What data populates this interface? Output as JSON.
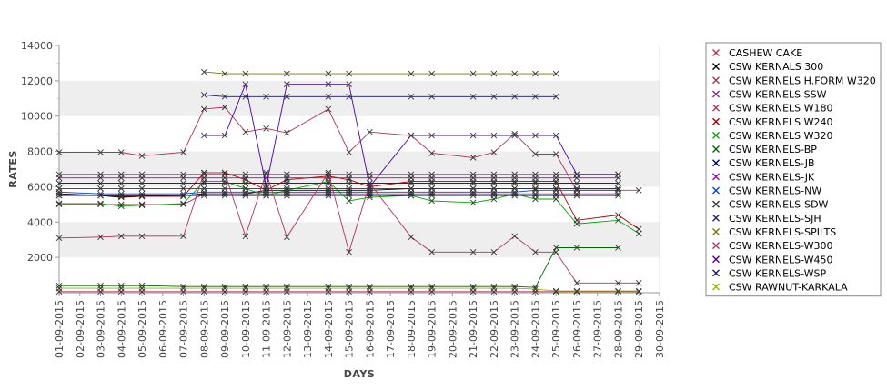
{
  "chart_data": {
    "type": "line",
    "xlabel": "DAYS",
    "ylabel": "RATES",
    "ylim": [
      0,
      14000
    ],
    "yticks": [
      2000,
      4000,
      6000,
      8000,
      10000,
      12000,
      14000
    ],
    "grid": "alternating horizontal bands",
    "legend_position": "right",
    "categories": [
      "01-09-2015",
      "02-09-2015",
      "03-09-2015",
      "04-09-2015",
      "05-09-2015",
      "06-09-2015",
      "07-09-2015",
      "08-09-2015",
      "09-09-2015",
      "10-09-2015",
      "11-09-2015",
      "12-09-2015",
      "13-09-2015",
      "14-09-2015",
      "15-09-2015",
      "16-09-2015",
      "17-09-2015",
      "18-09-2015",
      "19-09-2015",
      "20-09-2015",
      "21-09-2015",
      "22-09-2015",
      "23-09-2015",
      "24-09-2015",
      "25-09-2015",
      "26-09-2015",
      "27-09-2015",
      "28-09-2015",
      "29-09-2015",
      "30-09-2015"
    ],
    "series": [
      {
        "name": "CASHEW CAKE",
        "color": "#b03060",
        "values": [
          60,
          null,
          60,
          60,
          60,
          null,
          60,
          60,
          60,
          60,
          60,
          60,
          null,
          60,
          60,
          60,
          null,
          60,
          60,
          null,
          60,
          60,
          60,
          60,
          60,
          60,
          null,
          60,
          60,
          null
        ]
      },
      {
        "name": "CSW KERNALS 300",
        "color": "#000000",
        "values": [
          5600,
          null,
          5500,
          5400,
          5450,
          null,
          5500,
          5600,
          5600,
          5600,
          5800,
          5800,
          null,
          5800,
          5800,
          5800,
          null,
          5900,
          5900,
          null,
          5900,
          5900,
          5900,
          5900,
          5900,
          5900,
          null,
          5900,
          null,
          null
        ]
      },
      {
        "name": "CSW KERNELS H.FORM W320",
        "color": "#b03060",
        "values": [
          5000,
          null,
          5000,
          5000,
          5000,
          null,
          5000,
          5600,
          5600,
          5600,
          5600,
          5600,
          null,
          5600,
          5600,
          5600,
          null,
          5600,
          5600,
          null,
          5600,
          5600,
          5600,
          5600,
          5600,
          5600,
          null,
          5600,
          null,
          null
        ]
      },
      {
        "name": "CSW KERNELS SSW",
        "color": "#7a2a7a",
        "values": [
          6700,
          null,
          6700,
          6700,
          6700,
          null,
          6700,
          6700,
          6700,
          6700,
          6700,
          6700,
          null,
          6700,
          6700,
          6700,
          null,
          6700,
          6700,
          null,
          6700,
          6700,
          6700,
          6700,
          6700,
          6700,
          null,
          6700,
          null,
          null
        ]
      },
      {
        "name": "CSW KERNELS W180",
        "color": "#b03060",
        "values": [
          7950,
          null,
          7950,
          7950,
          7750,
          null,
          7950,
          10400,
          10500,
          9100,
          9300,
          9050,
          null,
          10400,
          7950,
          9100,
          null,
          8900,
          7900,
          null,
          7650,
          7950,
          9000,
          7850,
          7850,
          5800,
          null,
          5800,
          5800,
          null
        ]
      },
      {
        "name": "CSW KERNELS W240",
        "color": "#b00000",
        "values": [
          5500,
          null,
          5500,
          5450,
          5450,
          null,
          5450,
          6800,
          6800,
          6400,
          5800,
          6400,
          null,
          6600,
          6400,
          6000,
          null,
          6300,
          6300,
          null,
          6300,
          6300,
          6300,
          6300,
          6300,
          4100,
          null,
          4400,
          3600,
          null
        ]
      },
      {
        "name": "CSW KERNELS W320",
        "color": "#00aa00",
        "values": [
          5050,
          null,
          5050,
          4900,
          4950,
          null,
          5050,
          6300,
          6300,
          5900,
          5500,
          5800,
          null,
          6300,
          5200,
          5400,
          null,
          5500,
          5200,
          null,
          5100,
          5300,
          5600,
          5300,
          5300,
          3900,
          null,
          4100,
          3350,
          null
        ]
      },
      {
        "name": "CSW KERNELS-BP",
        "color": "#006600",
        "values": [
          400,
          null,
          400,
          400,
          400,
          null,
          350,
          350,
          350,
          350,
          350,
          350,
          null,
          350,
          350,
          350,
          null,
          350,
          350,
          null,
          350,
          350,
          350,
          300,
          2550,
          2550,
          null,
          2550,
          null,
          null
        ]
      },
      {
        "name": "CSW KERNELS-JB",
        "color": "#000080",
        "values": [
          5500,
          null,
          5500,
          5500,
          5500,
          null,
          5500,
          5500,
          5500,
          5500,
          5500,
          5500,
          null,
          5500,
          5500,
          5500,
          null,
          5500,
          5500,
          null,
          5500,
          5500,
          5500,
          5500,
          5500,
          5500,
          null,
          5500,
          null,
          null
        ]
      },
      {
        "name": "CSW KERNELS-JK",
        "color": "#aa00aa",
        "values": [
          6500,
          null,
          6500,
          6500,
          6500,
          null,
          6500,
          6500,
          6500,
          6500,
          6500,
          6500,
          null,
          6500,
          6500,
          6500,
          null,
          6500,
          6500,
          null,
          6500,
          6500,
          6500,
          6500,
          6500,
          6500,
          null,
          6500,
          null,
          null
        ]
      },
      {
        "name": "CSW KERNELS-NW",
        "color": "#0044cc",
        "values": [
          5700,
          null,
          5600,
          5600,
          5600,
          null,
          5600,
          5700,
          5700,
          5700,
          5700,
          5700,
          null,
          5700,
          5700,
          5700,
          null,
          5700,
          5700,
          null,
          5700,
          5700,
          5700,
          5800,
          5800,
          5800,
          null,
          5800,
          null,
          null
        ]
      },
      {
        "name": "CSW KERNELS-SDW",
        "color": "#333333",
        "values": [
          5900,
          null,
          5900,
          5900,
          5900,
          null,
          5900,
          5900,
          5900,
          5900,
          5900,
          5900,
          null,
          5900,
          5900,
          5900,
          null,
          5900,
          5900,
          null,
          5900,
          5900,
          5900,
          5900,
          5900,
          5900,
          null,
          5900,
          null,
          null
        ]
      },
      {
        "name": "CSW KERNELS-SJH",
        "color": "#222266",
        "values": [
          6200,
          null,
          6200,
          6200,
          6200,
          null,
          6200,
          6200,
          6200,
          6200,
          6200,
          6200,
          null,
          6200,
          6200,
          6200,
          null,
          6200,
          6200,
          null,
          6200,
          6200,
          6200,
          6200,
          6200,
          6200,
          null,
          6200,
          null,
          null
        ]
      },
      {
        "name": "CSW KERNELS-SPILTS",
        "color": "#7a7a00",
        "values": [
          null,
          null,
          null,
          null,
          null,
          null,
          null,
          12500,
          12400,
          12400,
          null,
          12400,
          null,
          12400,
          12400,
          null,
          null,
          12400,
          12400,
          null,
          12400,
          12400,
          12400,
          12400,
          12400,
          null,
          null,
          null,
          null,
          null
        ]
      },
      {
        "name": "CSW KERNELS-W300",
        "color": "#b03060",
        "values": [
          3100,
          null,
          3150,
          3200,
          3200,
          null,
          3200,
          6800,
          6800,
          3200,
          6800,
          3150,
          null,
          6800,
          2300,
          6200,
          null,
          3150,
          2300,
          null,
          2300,
          2300,
          3200,
          2300,
          2300,
          550,
          null,
          550,
          550,
          null
        ]
      },
      {
        "name": "CSW KERNELS-W450",
        "color": "#4b00aa",
        "values": [
          null,
          null,
          null,
          null,
          null,
          null,
          null,
          8900,
          8900,
          11800,
          6000,
          11800,
          null,
          11800,
          11800,
          6000,
          null,
          8900,
          8900,
          null,
          8900,
          8900,
          8900,
          8900,
          8900,
          6700,
          null,
          6700,
          null,
          null
        ]
      },
      {
        "name": "CSW KERNELS-WSP",
        "color": "#1a1a66",
        "values": [
          null,
          null,
          null,
          null,
          null,
          null,
          null,
          11200,
          11100,
          11100,
          11100,
          11100,
          null,
          11100,
          11100,
          null,
          null,
          11100,
          11100,
          null,
          11100,
          11100,
          11100,
          11100,
          11100,
          null,
          null,
          null,
          null,
          null
        ]
      },
      {
        "name": "CSW RAWNUT-KARKALA",
        "color": "#88bb00",
        "values": [
          250,
          null,
          250,
          250,
          250,
          null,
          250,
          250,
          250,
          250,
          250,
          250,
          null,
          250,
          250,
          250,
          null,
          250,
          250,
          null,
          250,
          250,
          250,
          200,
          100,
          100,
          null,
          100,
          100,
          null
        ]
      }
    ]
  }
}
